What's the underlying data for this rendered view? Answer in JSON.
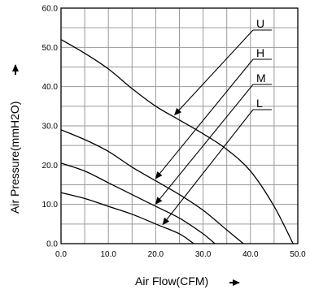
{
  "chart_data": {
    "type": "line",
    "title": "",
    "xlabel": "Air Flow(CFM)",
    "ylabel": "Air Pressure(mmH2O)",
    "xlim": [
      0,
      50
    ],
    "ylim": [
      0,
      60
    ],
    "x_ticks": [
      "0.0",
      "10.0",
      "20.0",
      "30.0",
      "40.0",
      "50.0"
    ],
    "y_ticks": [
      "0.0",
      "10.0",
      "20.0",
      "30.0",
      "40.0",
      "50.0",
      "60.0"
    ],
    "grid": true,
    "series": [
      {
        "name": "U",
        "x": [
          0,
          5,
          10,
          15,
          20,
          25,
          30,
          35,
          40,
          45,
          49
        ],
        "y": [
          52,
          48.5,
          44.5,
          39.5,
          35,
          31.5,
          28,
          24,
          18.5,
          9.5,
          0
        ]
      },
      {
        "name": "H",
        "x": [
          0,
          5,
          10,
          15,
          20,
          25,
          30,
          35,
          38.5
        ],
        "y": [
          29,
          26.5,
          23.5,
          19.5,
          16,
          12.5,
          8.5,
          3.5,
          0
        ]
      },
      {
        "name": "M",
        "x": [
          0,
          5,
          10,
          15,
          20,
          25,
          30,
          32.5
        ],
        "y": [
          20.5,
          18.5,
          15.5,
          12.5,
          9.5,
          6.5,
          2.5,
          0
        ]
      },
      {
        "name": "L",
        "x": [
          0,
          5,
          10,
          15,
          20,
          25,
          28
        ],
        "y": [
          13,
          11.5,
          9.5,
          7.5,
          5,
          2.5,
          0
        ]
      }
    ]
  }
}
